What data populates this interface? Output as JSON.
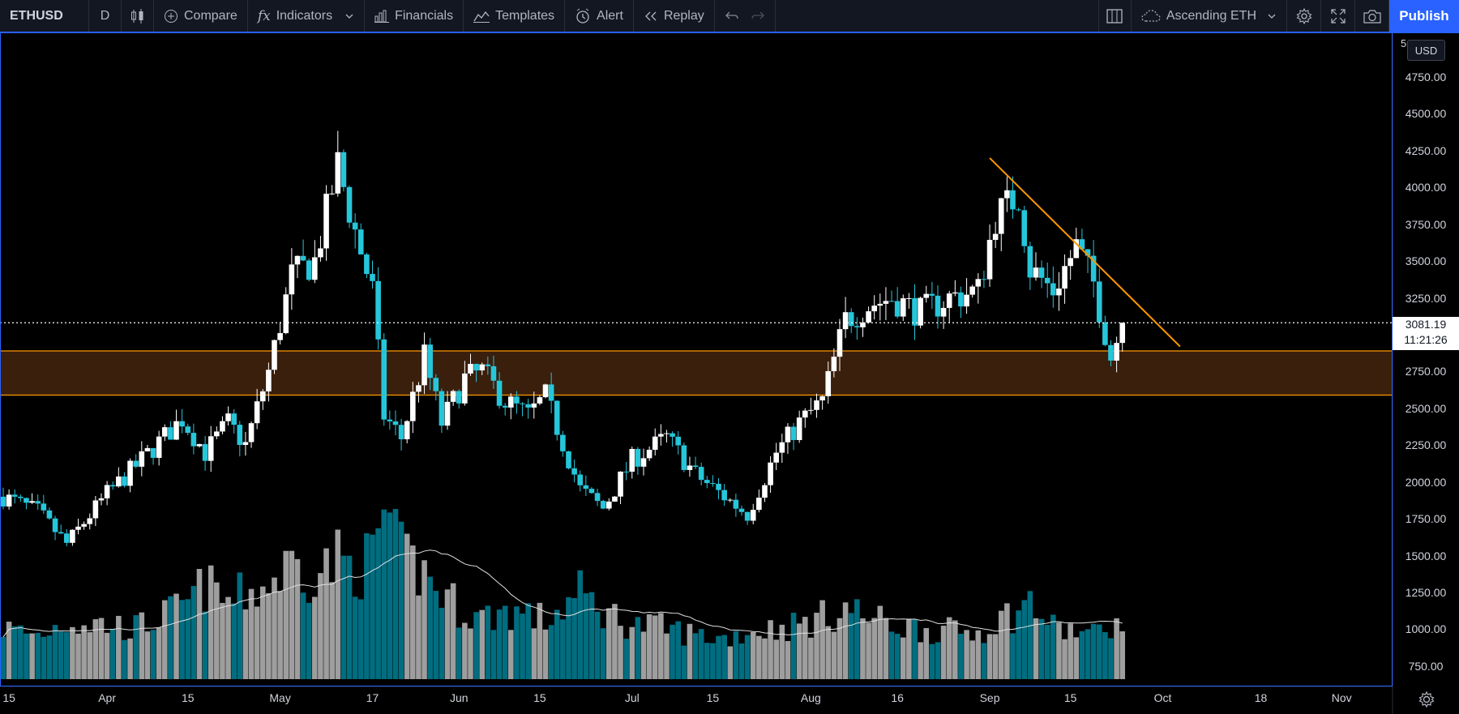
{
  "toolbar": {
    "symbol": "ETHUSD",
    "interval": "D",
    "compare": "Compare",
    "indicators": "Indicators",
    "financials": "Financials",
    "templates": "Templates",
    "alert": "Alert",
    "replay": "Replay",
    "layout_name": "Ascending ETH",
    "publish": "Publish"
  },
  "price_axis": {
    "currency": "USD",
    "top_partial_label": "5",
    "last_price": "3081.19",
    "countdown": "11:21:26"
  },
  "colors": {
    "background": "#000000",
    "up_candle": "#ffffff",
    "down_candle": "#26c6da",
    "volume_up": "#9e9e9e",
    "volume_down": "#006e80",
    "trendline": "#ff9800",
    "zone_fill": "#3a1f0d",
    "zone_border": "#ff9800",
    "accent": "#2962ff"
  },
  "chart_data": {
    "type": "candlestick",
    "symbol": "ETHUSD",
    "interval": "1D",
    "ylim": [
      650,
      5200
    ],
    "y_ticks": [
      750,
      1000,
      1250,
      1500,
      1750,
      2000,
      2250,
      2500,
      2750,
      3000,
      3250,
      3500,
      3750,
      4000,
      4250,
      4500,
      4750
    ],
    "y_tick_labels": [
      "750.00",
      "1000.00",
      "1250.00",
      "1500.00",
      "1750.00",
      "2000.00",
      "2250.00",
      "2500.00",
      "2750.00",
      "3000.00",
      "3250.00",
      "3500.00",
      "3750.00",
      "4000.00",
      "4250.00",
      "4500.00",
      "4750.00"
    ],
    "x_ticks": [
      {
        "label": "15",
        "date": "2021-03-15"
      },
      {
        "label": "Apr",
        "date": "2021-04-01"
      },
      {
        "label": "15",
        "date": "2021-04-15"
      },
      {
        "label": "May",
        "date": "2021-05-01"
      },
      {
        "label": "17",
        "date": "2021-05-17"
      },
      {
        "label": "Jun",
        "date": "2021-06-01"
      },
      {
        "label": "15",
        "date": "2021-06-15"
      },
      {
        "label": "Jul",
        "date": "2021-07-01"
      },
      {
        "label": "15",
        "date": "2021-07-15"
      },
      {
        "label": "Aug",
        "date": "2021-08-01"
      },
      {
        "label": "16",
        "date": "2021-08-16"
      },
      {
        "label": "Sep",
        "date": "2021-09-01"
      },
      {
        "label": "15",
        "date": "2021-09-15"
      },
      {
        "label": "Oct",
        "date": "2021-10-01"
      },
      {
        "label": "18",
        "date": "2021-10-18"
      },
      {
        "label": "Nov",
        "date": "2021-11-01"
      }
    ],
    "x_range": [
      "2021-03-14",
      "2021-11-08"
    ],
    "last_price": 3081.19,
    "support_zone": {
      "low": 2590,
      "high": 2890
    },
    "trendline": {
      "start": {
        "date": "2021-09-01",
        "price": 4200
      },
      "end": {
        "date": "2021-10-04",
        "price": 2920
      }
    },
    "volume_ma_shown": true,
    "anchors": [
      {
        "date": "2021-03-14",
        "close": 1900,
        "vol": 0.3
      },
      {
        "date": "2021-03-20",
        "close": 1800,
        "vol": 0.26
      },
      {
        "date": "2021-03-25",
        "close": 1580,
        "vol": 0.34
      },
      {
        "date": "2021-04-01",
        "close": 1920,
        "vol": 0.32
      },
      {
        "date": "2021-04-06",
        "close": 2110,
        "vol": 0.3
      },
      {
        "date": "2021-04-14",
        "close": 2430,
        "vol": 0.42
      },
      {
        "date": "2021-04-18",
        "close": 2200,
        "vol": 0.55
      },
      {
        "date": "2021-04-22",
        "close": 2400,
        "vol": 0.45
      },
      {
        "date": "2021-04-25",
        "close": 2250,
        "vol": 0.5
      },
      {
        "date": "2021-04-29",
        "close": 2750,
        "vol": 0.55
      },
      {
        "date": "2021-05-03",
        "close": 3400,
        "vol": 0.68
      },
      {
        "date": "2021-05-07",
        "close": 3500,
        "vol": 0.62
      },
      {
        "date": "2021-05-11",
        "close": 4150,
        "vol": 0.7
      },
      {
        "date": "2021-05-14",
        "close": 3700,
        "vol": 0.65
      },
      {
        "date": "2021-05-17",
        "close": 3300,
        "vol": 0.7
      },
      {
        "date": "2021-05-19",
        "close": 2450,
        "vol": 1.0
      },
      {
        "date": "2021-05-22",
        "close": 2300,
        "vol": 0.72
      },
      {
        "date": "2021-05-26",
        "close": 2850,
        "vol": 0.62
      },
      {
        "date": "2021-05-29",
        "close": 2400,
        "vol": 0.5
      },
      {
        "date": "2021-06-02",
        "close": 2700,
        "vol": 0.4
      },
      {
        "date": "2021-06-05",
        "close": 2750,
        "vol": 0.36
      },
      {
        "date": "2021-06-09",
        "close": 2550,
        "vol": 0.4
      },
      {
        "date": "2021-06-13",
        "close": 2450,
        "vol": 0.38
      },
      {
        "date": "2021-06-16",
        "close": 2580,
        "vol": 0.34
      },
      {
        "date": "2021-06-22",
        "close": 1950,
        "vol": 0.5
      },
      {
        "date": "2021-06-26",
        "close": 1820,
        "vol": 0.4
      },
      {
        "date": "2021-07-01",
        "close": 2150,
        "vol": 0.32
      },
      {
        "date": "2021-07-07",
        "close": 2300,
        "vol": 0.3
      },
      {
        "date": "2021-07-12",
        "close": 2050,
        "vol": 0.26
      },
      {
        "date": "2021-07-17",
        "close": 1900,
        "vol": 0.24
      },
      {
        "date": "2021-07-21",
        "close": 1780,
        "vol": 0.28
      },
      {
        "date": "2021-07-26",
        "close": 2200,
        "vol": 0.3
      },
      {
        "date": "2021-07-30",
        "close": 2400,
        "vol": 0.32
      },
      {
        "date": "2021-08-03",
        "close": 2550,
        "vol": 0.36
      },
      {
        "date": "2021-08-07",
        "close": 3100,
        "vol": 0.42
      },
      {
        "date": "2021-08-11",
        "close": 3200,
        "vol": 0.36
      },
      {
        "date": "2021-08-15",
        "close": 3250,
        "vol": 0.32
      },
      {
        "date": "2021-08-20",
        "close": 3150,
        "vol": 0.3
      },
      {
        "date": "2021-08-25",
        "close": 3250,
        "vol": 0.28
      },
      {
        "date": "2021-08-30",
        "close": 3300,
        "vol": 0.28
      },
      {
        "date": "2021-09-02",
        "close": 3800,
        "vol": 0.34
      },
      {
        "date": "2021-09-06",
        "close": 3950,
        "vol": 0.4
      },
      {
        "date": "2021-09-08",
        "close": 3450,
        "vol": 0.45
      },
      {
        "date": "2021-09-12",
        "close": 3300,
        "vol": 0.3
      },
      {
        "date": "2021-09-16",
        "close": 3600,
        "vol": 0.28
      },
      {
        "date": "2021-09-19",
        "close": 3350,
        "vol": 0.26
      },
      {
        "date": "2021-09-22",
        "close": 2850,
        "vol": 0.34
      },
      {
        "date": "2021-09-24",
        "close": 3081,
        "vol": 0.26
      }
    ]
  }
}
